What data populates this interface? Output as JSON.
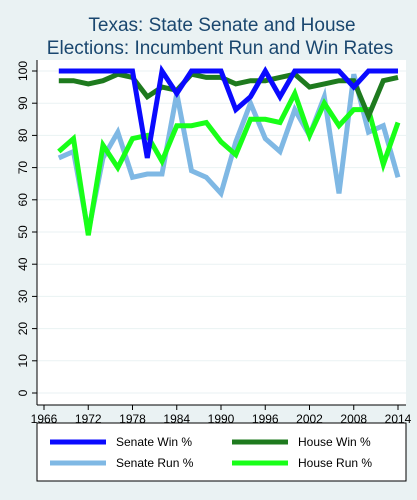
{
  "chart_data": {
    "type": "line",
    "title_lines": [
      "Texas: State Senate and House",
      "Elections: Incumbent Run and Win Rates"
    ],
    "xlabel": "",
    "ylabel": "",
    "xlim": [
      1966,
      2014
    ],
    "ylim": [
      0,
      100
    ],
    "x_ticks": [
      1966,
      1972,
      1978,
      1984,
      1990,
      1996,
      2002,
      2008,
      2014
    ],
    "y_ticks": [
      0,
      10,
      20,
      30,
      40,
      50,
      60,
      70,
      80,
      90,
      100
    ],
    "grid": true,
    "legend_position": "bottom",
    "series": [
      {
        "name": "Senate Win %",
        "color": "#0a0aff",
        "x": [
          1968,
          1970,
          1972,
          1974,
          1976,
          1978,
          1980,
          1982,
          1984,
          1986,
          1988,
          1990,
          1992,
          1994,
          1996,
          1998,
          2000,
          2002,
          2004,
          2006,
          2008,
          2010,
          2012,
          2014
        ],
        "values": [
          100,
          100,
          100,
          100,
          100,
          100,
          73,
          100,
          93,
          100,
          100,
          100,
          88,
          92,
          100,
          92,
          100,
          100,
          100,
          100,
          95,
          100,
          100,
          100
        ]
      },
      {
        "name": "Senate Run %",
        "color": "#7fb8e4",
        "x": [
          1968,
          1970,
          1972,
          1974,
          1976,
          1978,
          1980,
          1982,
          1984,
          1986,
          1988,
          1990,
          1992,
          1994,
          1996,
          1998,
          2000,
          2002,
          2004,
          2006,
          2008,
          2010,
          2012,
          2014
        ],
        "values": [
          73,
          75,
          50,
          73,
          81,
          67,
          68,
          68,
          93,
          69,
          67,
          62,
          78,
          90,
          79,
          75,
          88,
          80,
          92,
          62,
          99,
          81,
          83,
          67
        ]
      },
      {
        "name": "House Win %",
        "color": "#1e7a1e",
        "x": [
          1968,
          1970,
          1972,
          1974,
          1976,
          1978,
          1980,
          1982,
          1984,
          1986,
          1988,
          1990,
          1992,
          1994,
          1996,
          1998,
          2000,
          2002,
          2004,
          2006,
          2008,
          2010,
          2012,
          2014
        ],
        "values": [
          97,
          97,
          96,
          97,
          99,
          98,
          92,
          95,
          94,
          99,
          98,
          98,
          96,
          97,
          97,
          98,
          99,
          95,
          96,
          97,
          97,
          86,
          97,
          98
        ]
      },
      {
        "name": "House Run %",
        "color": "#18ff18",
        "x": [
          1968,
          1970,
          1972,
          1974,
          1976,
          1978,
          1980,
          1982,
          1984,
          1986,
          1988,
          1990,
          1992,
          1994,
          1996,
          1998,
          2000,
          2002,
          2004,
          2006,
          2008,
          2010,
          2012,
          2014
        ],
        "values": [
          75,
          79,
          49,
          77,
          70,
          79,
          80,
          72,
          83,
          83,
          84,
          78,
          74,
          85,
          85,
          84,
          93,
          80,
          90,
          83,
          88,
          88,
          71,
          84
        ]
      }
    ],
    "legend_order": [
      "Senate Win %",
      "House Win %",
      "Senate Run %",
      "House Run %"
    ]
  }
}
